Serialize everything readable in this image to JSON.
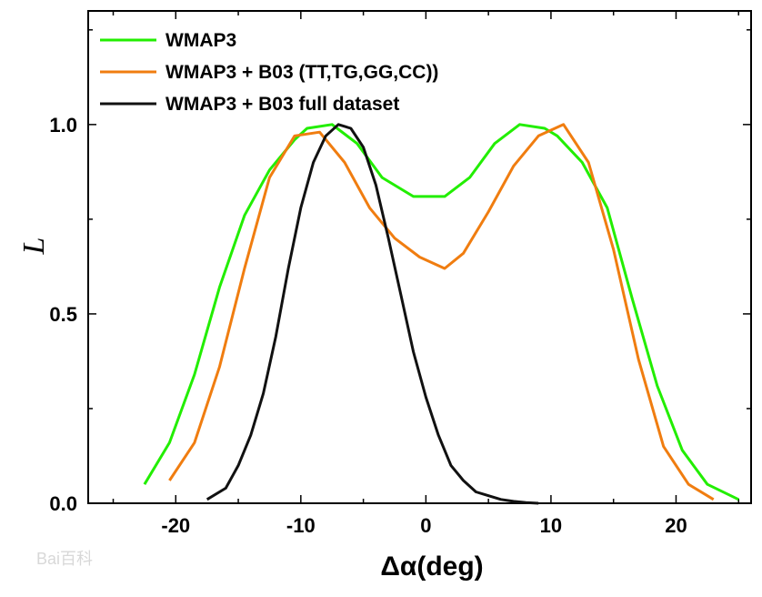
{
  "chart_data": {
    "type": "line",
    "title": "",
    "xlabel": "Δα(deg)",
    "ylabel": "L",
    "xlim": [
      -27,
      26
    ],
    "ylim": [
      0,
      1.3
    ],
    "xticks": [
      -20,
      -10,
      0,
      10,
      20
    ],
    "xtick_labels": [
      "-20",
      "-10",
      "0",
      "10",
      "20"
    ],
    "yticks": [
      0.0,
      0.5,
      1.0
    ],
    "ytick_labels": [
      "0.0",
      "0.5",
      "1.0"
    ],
    "grid": false,
    "legend_position": "top-left",
    "series": [
      {
        "name": "WMAP3",
        "color": "#22ee00",
        "x": [
          -22.5,
          -20.5,
          -18.5,
          -16.5,
          -14.5,
          -12.5,
          -10.5,
          -9.5,
          -7.5,
          -5.5,
          -3.5,
          -1,
          1.5,
          3.5,
          5.5,
          7.5,
          9.5,
          10.5,
          12.5,
          14.5,
          16.5,
          18.5,
          20.5,
          22.5,
          25
        ],
        "y": [
          0.05,
          0.16,
          0.34,
          0.57,
          0.76,
          0.88,
          0.96,
          0.99,
          1.0,
          0.95,
          0.86,
          0.81,
          0.81,
          0.86,
          0.95,
          1.0,
          0.99,
          0.97,
          0.9,
          0.78,
          0.54,
          0.31,
          0.14,
          0.05,
          0.01
        ]
      },
      {
        "name": "WMAP3 + B03 (TT,TG,GG,CC))",
        "color": "#f07d10",
        "x": [
          -20.5,
          -18.5,
          -16.5,
          -14.5,
          -12.5,
          -10.5,
          -8.5,
          -6.5,
          -4.5,
          -2.5,
          -0.5,
          1.5,
          3,
          5,
          7,
          9,
          11,
          13,
          15,
          17,
          19,
          21,
          23
        ],
        "y": [
          0.06,
          0.16,
          0.36,
          0.62,
          0.86,
          0.97,
          0.98,
          0.9,
          0.78,
          0.7,
          0.65,
          0.62,
          0.66,
          0.77,
          0.89,
          0.97,
          1.0,
          0.9,
          0.67,
          0.38,
          0.15,
          0.05,
          0.01
        ]
      },
      {
        "name": "WMAP3 + B03 full dataset",
        "color": "#111111",
        "x": [
          -17.5,
          -16,
          -15,
          -14,
          -13,
          -12,
          -11,
          -10,
          -9,
          -8,
          -7,
          -6,
          -5,
          -4,
          -3,
          -2,
          -1,
          0,
          1,
          2,
          3,
          4,
          5,
          6,
          7,
          8,
          9
        ],
        "y": [
          0.01,
          0.04,
          0.1,
          0.18,
          0.29,
          0.44,
          0.62,
          0.78,
          0.9,
          0.97,
          1.0,
          0.99,
          0.94,
          0.84,
          0.7,
          0.55,
          0.4,
          0.28,
          0.18,
          0.1,
          0.06,
          0.03,
          0.02,
          0.01,
          0.005,
          0.002,
          0.0
        ]
      }
    ]
  },
  "watermark": "Bai百科"
}
